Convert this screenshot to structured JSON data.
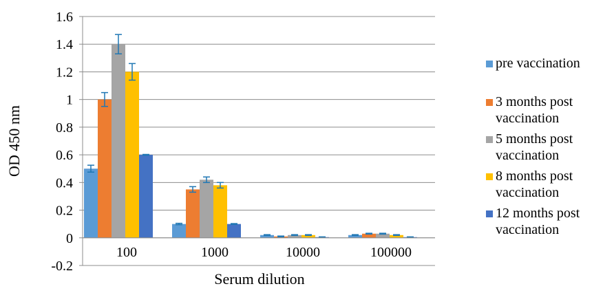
{
  "chart_data": {
    "type": "bar",
    "categories": [
      "100",
      "1000",
      "10000",
      "100000"
    ],
    "xlabel": "Serum dilution",
    "ylabel": "OD 450 nm",
    "ylim": [
      -0.2,
      1.6
    ],
    "yticks": [
      "-0.2",
      "0",
      "0.2",
      "0.4",
      "0.6",
      "0.8",
      "1",
      "1.2",
      "1.4",
      "1.6"
    ],
    "grid": true,
    "legend_position": "right",
    "series": [
      {
        "name": "pre vaccination",
        "color": "#5B9BD5",
        "values": [
          0.5,
          0.1,
          0.02,
          0.02
        ],
        "errors": [
          0.025,
          0.005,
          0.003,
          0.003
        ]
      },
      {
        "name": "3 months post vaccination",
        "color": "#ED7D31",
        "values": [
          1.0,
          0.35,
          0.01,
          0.03
        ],
        "errors": [
          0.05,
          0.02,
          0.003,
          0.003
        ]
      },
      {
        "name": "5 months post vaccination",
        "color": "#A5A5A5",
        "values": [
          1.4,
          0.42,
          0.02,
          0.03
        ],
        "errors": [
          0.07,
          0.02,
          0.003,
          0.003
        ]
      },
      {
        "name": "8 months post vaccination",
        "color": "#FFC000",
        "values": [
          1.2,
          0.38,
          0.02,
          0.02
        ],
        "errors": [
          0.06,
          0.02,
          0.003,
          0.003
        ]
      },
      {
        "name": "12 months post vaccination",
        "color": "#4472C4",
        "values": [
          0.6,
          0.1,
          0.005,
          0.005
        ],
        "errors": [
          0.003,
          0.003,
          0.002,
          0.002
        ]
      }
    ],
    "error_bar_color": "#1F77B4"
  }
}
